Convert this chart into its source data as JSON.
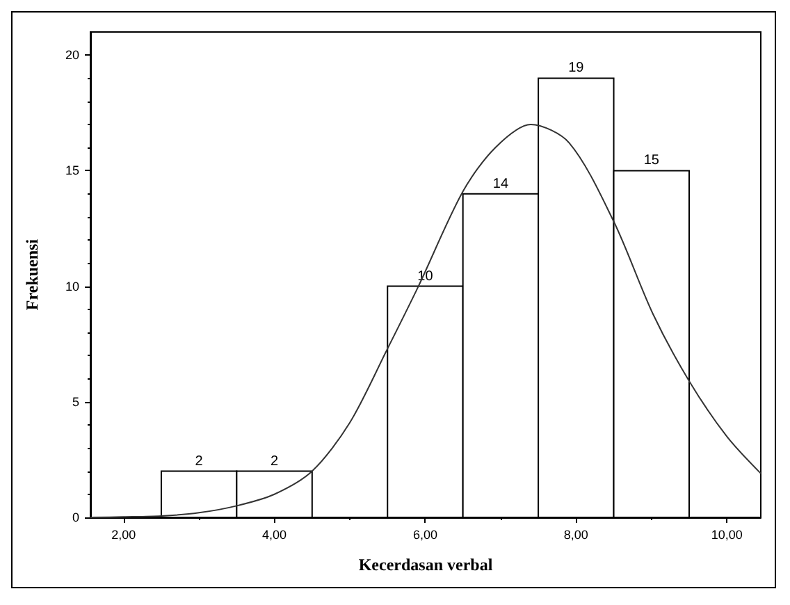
{
  "chart_data": {
    "type": "histogram",
    "xlabel": "Kecerdasan verbal",
    "ylabel": "Frekuensi",
    "bins": [
      2.5,
      3.5,
      4.5,
      5.5,
      6.5,
      7.5,
      8.5,
      9.5
    ],
    "values": [
      2,
      2,
      0,
      10,
      14,
      19,
      15
    ],
    "value_labels": [
      "2",
      "2",
      null,
      "10",
      "14",
      "19",
      "15"
    ],
    "color": "#ffffff",
    "series": [
      {
        "type": "line",
        "color": "#333333",
        "x": [
          1.56,
          2.0,
          2.5,
          3.0,
          3.5,
          4.0,
          4.5,
          5.0,
          5.5,
          5.91,
          6.5,
          6.93,
          7.4,
          7.91,
          8.5,
          9.02,
          9.5,
          10.0,
          10.45
        ],
        "values": [
          0,
          0.02,
          0.06,
          0.2,
          0.5,
          1.0,
          2.0,
          4.1,
          7.3,
          10.0,
          14.1,
          16.0,
          17.0,
          16.2,
          12.8,
          8.8,
          5.9,
          3.5,
          1.9
        ]
      }
    ],
    "xlim": [
      1.56,
      10.45
    ],
    "ylim": [
      0,
      21
    ],
    "xticks": [
      {
        "value": 2,
        "label": "2,00"
      },
      {
        "value": 4,
        "label": "4,00"
      },
      {
        "value": 6,
        "label": "6,00"
      },
      {
        "value": 8,
        "label": "8,00"
      },
      {
        "value": 10,
        "label": "10,00"
      }
    ],
    "yticks": [
      0,
      5,
      10,
      15,
      20
    ],
    "grid": false,
    "marker": "none",
    "line_style": "solid"
  }
}
